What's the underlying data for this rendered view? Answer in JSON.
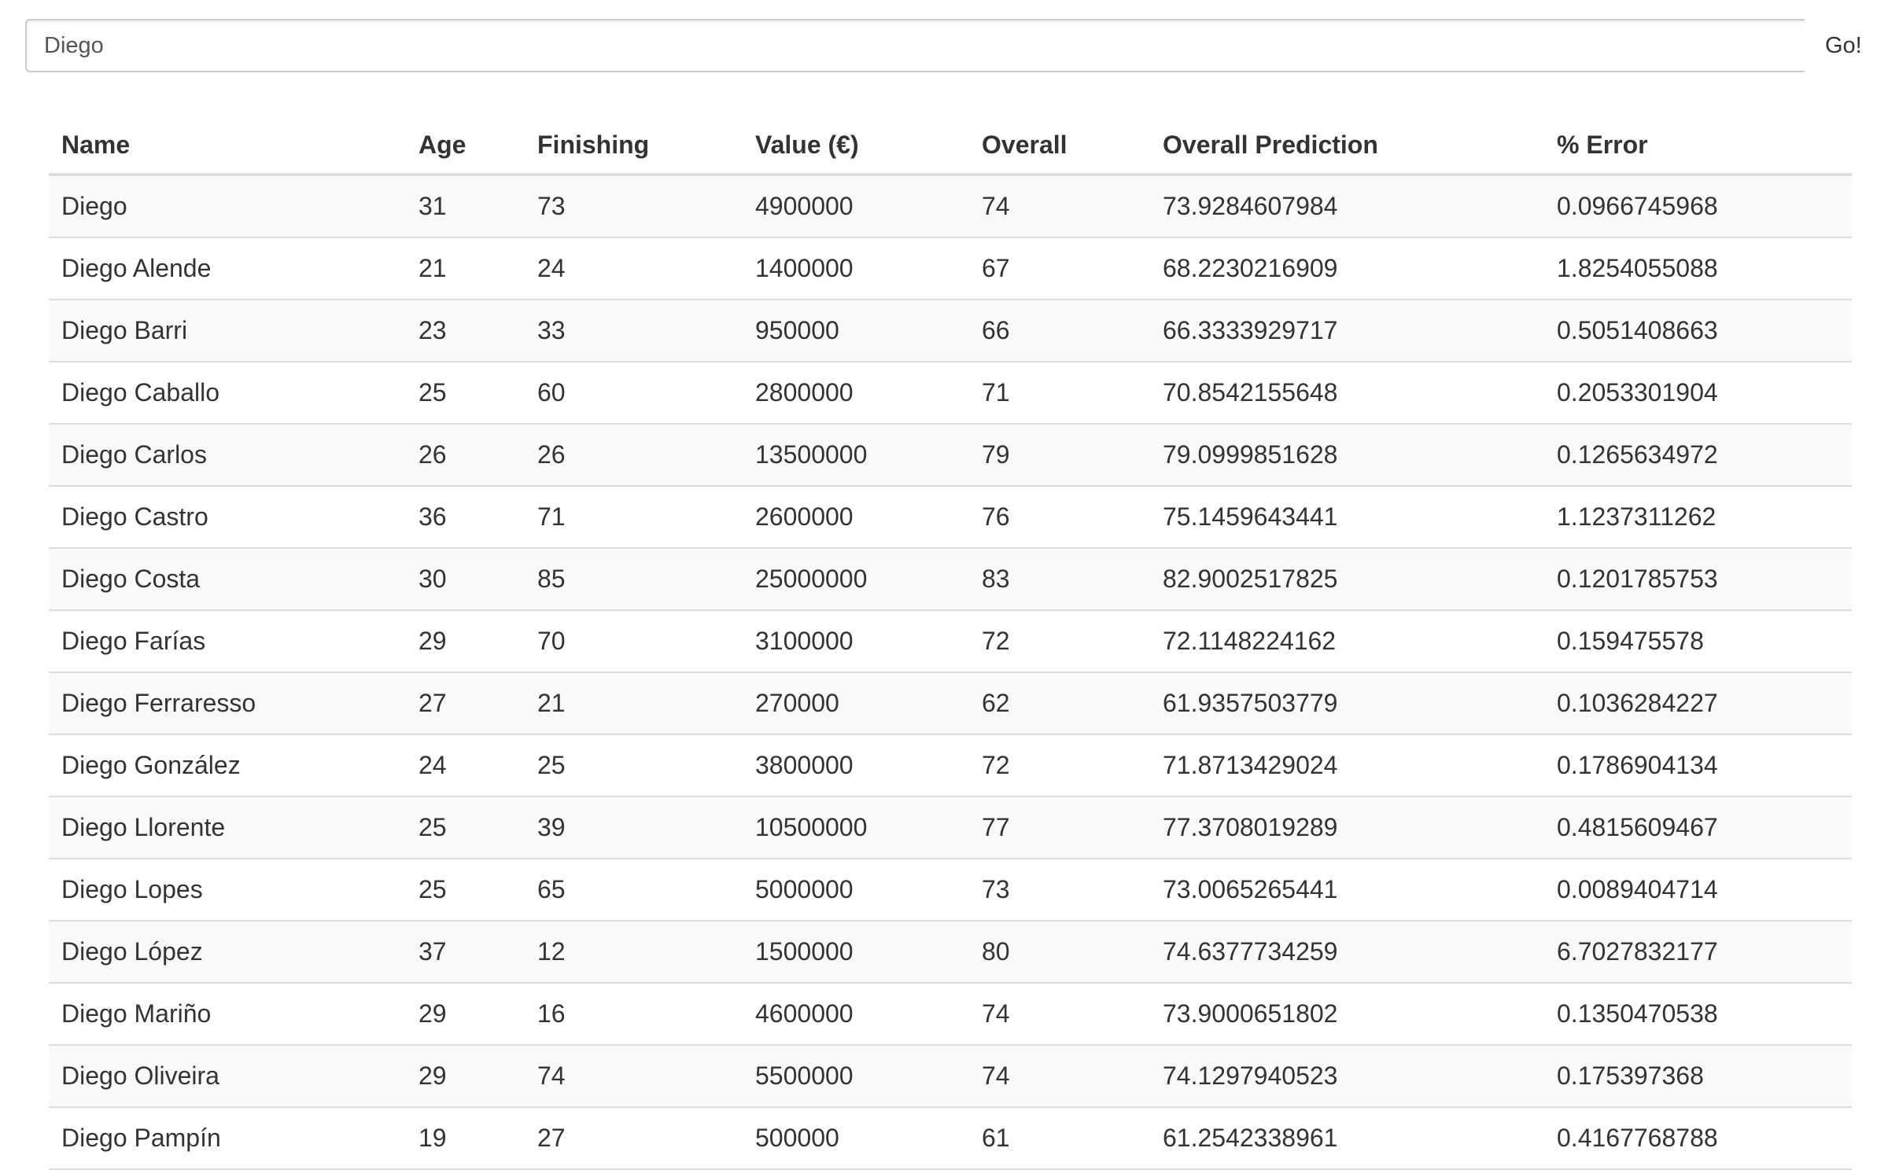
{
  "search": {
    "value": "Diego",
    "button_label": "Go!"
  },
  "table": {
    "headers": [
      "Name",
      "Age",
      "Finishing",
      "Value (€)",
      "Overall",
      "Overall Prediction",
      "% Error"
    ],
    "rows": [
      [
        "Diego",
        "31",
        "73",
        "4900000",
        "74",
        "73.9284607984",
        "0.0966745968"
      ],
      [
        "Diego Alende",
        "21",
        "24",
        "1400000",
        "67",
        "68.2230216909",
        "1.8254055088"
      ],
      [
        "Diego Barri",
        "23",
        "33",
        "950000",
        "66",
        "66.3333929717",
        "0.5051408663"
      ],
      [
        "Diego Caballo",
        "25",
        "60",
        "2800000",
        "71",
        "70.8542155648",
        "0.2053301904"
      ],
      [
        "Diego Carlos",
        "26",
        "26",
        "13500000",
        "79",
        "79.0999851628",
        "0.1265634972"
      ],
      [
        "Diego Castro",
        "36",
        "71",
        "2600000",
        "76",
        "75.1459643441",
        "1.1237311262"
      ],
      [
        "Diego Costa",
        "30",
        "85",
        "25000000",
        "83",
        "82.9002517825",
        "0.1201785753"
      ],
      [
        "Diego Farías",
        "29",
        "70",
        "3100000",
        "72",
        "72.1148224162",
        "0.159475578"
      ],
      [
        "Diego Ferraresso",
        "27",
        "21",
        "270000",
        "62",
        "61.9357503779",
        "0.1036284227"
      ],
      [
        "Diego González",
        "24",
        "25",
        "3800000",
        "72",
        "71.8713429024",
        "0.1786904134"
      ],
      [
        "Diego Llorente",
        "25",
        "39",
        "10500000",
        "77",
        "77.3708019289",
        "0.4815609467"
      ],
      [
        "Diego Lopes",
        "25",
        "65",
        "5000000",
        "73",
        "73.0065265441",
        "0.0089404714"
      ],
      [
        "Diego López",
        "37",
        "12",
        "1500000",
        "80",
        "74.6377734259",
        "6.7027832177"
      ],
      [
        "Diego Mariño",
        "29",
        "16",
        "4600000",
        "74",
        "73.9000651802",
        "0.1350470538"
      ],
      [
        "Diego Oliveira",
        "29",
        "74",
        "5500000",
        "74",
        "74.1297940523",
        "0.175397368"
      ],
      [
        "Diego Pampín",
        "19",
        "27",
        "500000",
        "61",
        "61.2542338961",
        "0.4167768788"
      ]
    ]
  }
}
